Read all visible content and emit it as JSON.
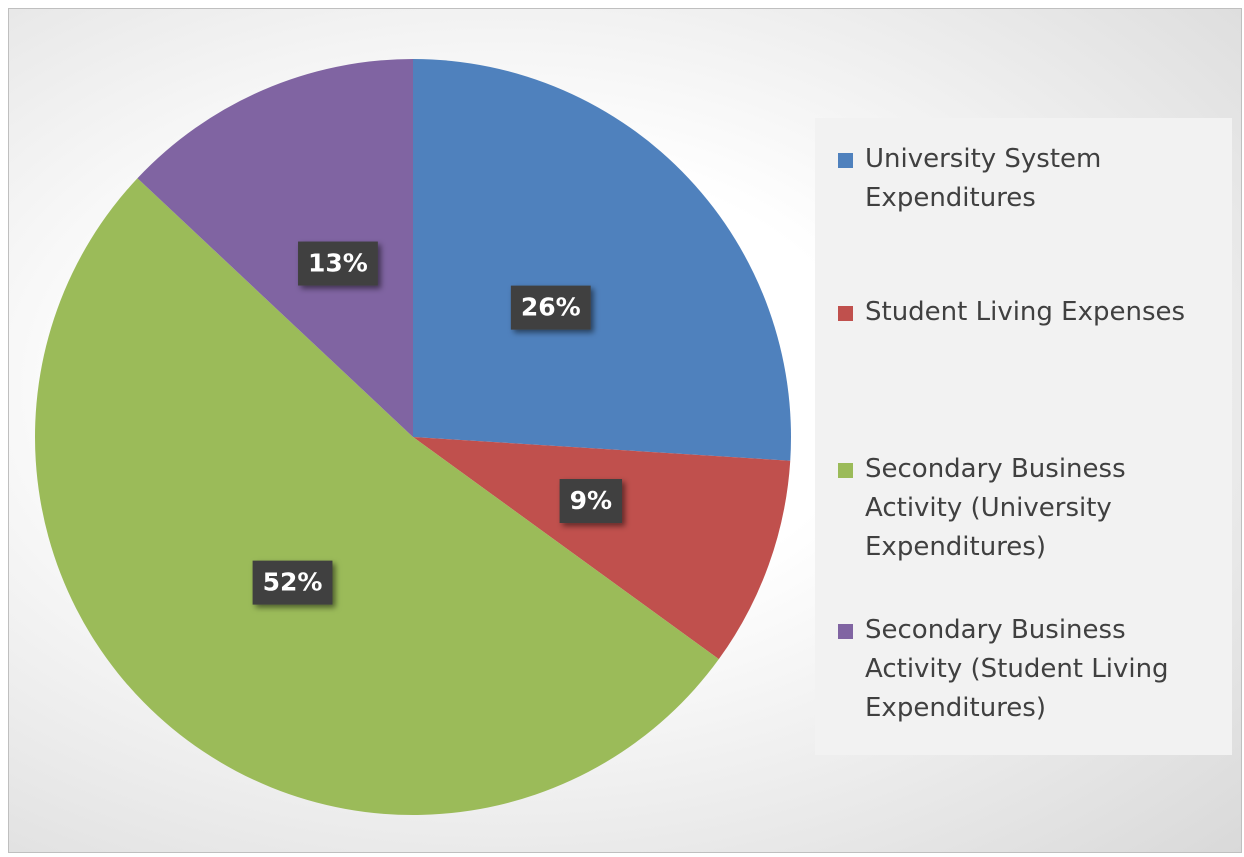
{
  "chart_data": {
    "type": "pie",
    "categories": [
      "University System Expenditures",
      "Student Living Expenses",
      "Secondary Business Activity (University Expenditures)",
      "Secondary Business Activity (Student Living Expenditures)"
    ],
    "values": [
      26,
      9,
      52,
      13
    ],
    "value_labels": [
      "26%",
      "9%",
      "52%",
      "13%"
    ],
    "colors": [
      "#4f81bd",
      "#c0504d",
      "#9bbb59",
      "#8064a2"
    ],
    "legend": "right"
  }
}
